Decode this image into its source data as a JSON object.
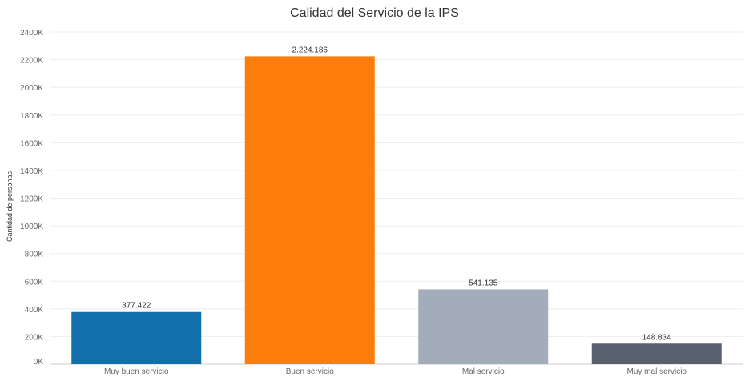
{
  "chart_data": {
    "type": "bar",
    "title": "Calidad del Servicio de la IPS",
    "xlabel": "",
    "ylabel": "Cantidad de personas",
    "categories": [
      "Muy buen servicio",
      "Buen servicio",
      "Mal servicio",
      "Muy mal servicio"
    ],
    "values": [
      377422,
      2224186,
      541135,
      148834
    ],
    "value_labels": [
      "377.422",
      "2.224.186",
      "541.135",
      "148.834"
    ],
    "colors": [
      "#1170aa",
      "#fc7d0b",
      "#a3acb9",
      "#57606c"
    ],
    "ylim": [
      0,
      2400000
    ],
    "y_ticks": [
      0,
      200000,
      400000,
      600000,
      800000,
      1000000,
      1200000,
      1400000,
      1600000,
      1800000,
      2000000,
      2200000,
      2400000
    ],
    "y_tick_labels": [
      "0K",
      "200K",
      "400K",
      "600K",
      "800K",
      "1000K",
      "1200K",
      "1400K",
      "1600K",
      "1800K",
      "2000K",
      "2200K",
      "2400K"
    ],
    "grid": true,
    "legend": "none"
  }
}
